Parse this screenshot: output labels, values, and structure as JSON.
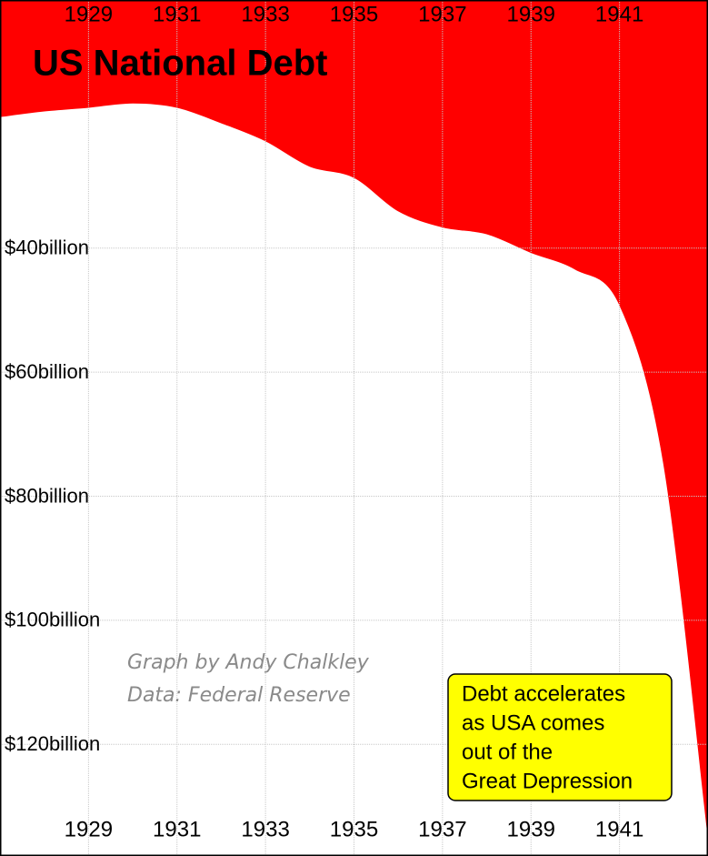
{
  "chart_data": {
    "type": "area",
    "title": "US National Debt",
    "x": [
      1927,
      1928,
      1929,
      1930,
      1931,
      1932,
      1933,
      1934,
      1935,
      1936,
      1937,
      1938,
      1939,
      1940,
      1941,
      1942,
      1943
    ],
    "values": [
      18.8,
      17.9,
      17.3,
      16.6,
      17.3,
      19.8,
      22.7,
      26.8,
      28.6,
      34.0,
      36.6,
      37.7,
      40.7,
      43.4,
      49.1,
      74.8,
      134.8
    ],
    "color": "#ff0000",
    "xlim": [
      1927,
      1943
    ],
    "xticks": [
      1929,
      1931,
      1933,
      1935,
      1937,
      1939,
      1941
    ],
    "ylim": [
      0,
      138
    ],
    "y_inverted": true,
    "yticks": [
      {
        "value": 40,
        "label": "$40billion"
      },
      {
        "value": 60,
        "label": "$60billion"
      },
      {
        "value": 80,
        "label": "$80billion"
      },
      {
        "value": 100,
        "label": "$100billion"
      },
      {
        "value": 120,
        "label": "$120billion"
      }
    ],
    "grid": true,
    "credits": [
      "Graph by Andy Chalkley",
      "Data: Federal Reserve"
    ],
    "annotation": [
      "Debt accelerates",
      "as USA comes",
      "out of the",
      "Great Depression"
    ]
  }
}
